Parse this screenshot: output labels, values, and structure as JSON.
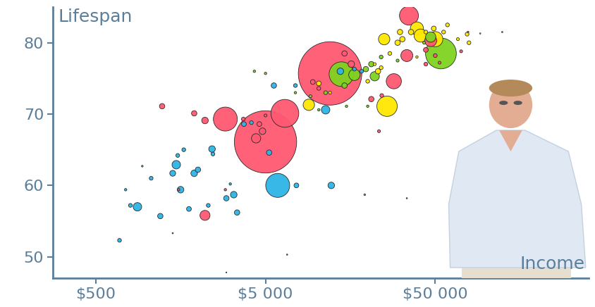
{
  "chart_data": {
    "type": "scatter",
    "ylabel": "Lifespan",
    "xlabel": "Income",
    "log": "x",
    "xlim": [
      280,
      400000
    ],
    "xticks": [
      {
        "value": 500,
        "label": "$500"
      },
      {
        "value": 5000,
        "label": "$5 000"
      },
      {
        "value": 50000,
        "label": "$50 000"
      }
    ],
    "ylim": [
      47,
      85
    ],
    "yticks": [
      50,
      60,
      70,
      80
    ],
    "grid": false,
    "series": [
      {
        "color": "#2db4e6",
        "x": [
          690,
          800,
          750,
          940,
          880,
          1060,
          1200,
          1420,
          1490,
          1520,
          1580,
          1650,
          1770,
          1900,
          2000,
          2420,
          2450,
          2300,
          2940,
          3250,
          3400,
          3100,
          3730,
          4130,
          5250,
          5900,
          7600,
          12200,
          6700,
          5600,
          7500,
          11300,
          13800,
          16700,
          18400,
          19200,
          34000,
          1420,
          2940
        ],
        "values": [
          52.3,
          57.2,
          59.4,
          62.7,
          57,
          61,
          55.7,
          61.7,
          62.9,
          64.2,
          59.4,
          65,
          56.7,
          61.7,
          62.2,
          65.1,
          64.4,
          57.2,
          58.2,
          58.7,
          56.2,
          60.2,
          68.6,
          68.8,
          64.6,
          60,
          60,
          60,
          50.3,
          74,
          74,
          70.6,
          76,
          76.3,
          76,
          58.7,
          58.2,
          53.3,
          47.8
        ],
        "sizes": [
          5,
          5,
          2,
          1,
          25,
          5,
          10,
          12,
          25,
          5,
          15,
          5,
          8,
          15,
          10,
          15,
          5,
          5,
          10,
          15,
          10,
          2,
          8,
          5,
          10,
          200,
          8,
          15,
          0.5,
          10,
          5,
          25,
          15,
          5,
          5,
          1,
          0.5,
          0.5,
          0.3
        ]
      },
      {
        "color": "#ff5872",
        "x": [
          1230,
          1900,
          2200,
          2900,
          6500,
          5000,
          4400,
          4800,
          4600,
          2200,
          2900,
          12000,
          16000,
          14600,
          21000,
          24200,
          23300,
          28500,
          44000,
          34000,
          35000,
          44000,
          47000,
          50000,
          53000,
          71000,
          78000,
          124000,
          3700,
          5000,
          1540,
          9500,
          10300
        ],
        "values": [
          71.1,
          70.1,
          69.1,
          69.3,
          70.1,
          66.1,
          66.6,
          67.6,
          68.6,
          55.8,
          59.4,
          75.7,
          77,
          78.5,
          72.1,
          72.6,
          67.6,
          74.6,
          77,
          78.2,
          83.8,
          79,
          80.3,
          78.2,
          77.2,
          78.8,
          81.5,
          81.5,
          69.3,
          69.8,
          59.4,
          74.5,
          73.6
        ],
        "sizes": [
          10,
          10,
          15,
          200,
          270,
          1350,
          30,
          15,
          8,
          35,
          2,
          1400,
          15,
          10,
          10,
          5,
          3,
          80,
          5,
          50,
          125,
          8,
          50,
          5,
          3,
          3,
          1,
          0.5,
          5,
          3,
          2,
          8,
          5
        ]
      },
      {
        "color": "#7ed321",
        "x": [
          4300,
          5000,
          7500,
          9200,
          11300,
          14600,
          14000,
          16700,
          21000,
          24000,
          30000,
          43000,
          54000,
          47000,
          10300,
          15000,
          20000,
          19500,
          22000
        ],
        "values": [
          76,
          75.7,
          73,
          72.5,
          73,
          74,
          75.6,
          75.5,
          77,
          78,
          77.5,
          80,
          78.5,
          80.8,
          70.6,
          71.1,
          71.1,
          76.3,
          75.3
        ],
        "sizes": [
          2,
          2,
          2,
          3,
          5,
          10,
          210,
          45,
          10,
          5,
          3,
          3,
          330,
          37,
          2,
          2,
          2,
          10,
          30
        ]
      },
      {
        "color": "#ffe700",
        "x": [
          22000,
          24000,
          26000,
          20000,
          23000,
          9000,
          10300,
          12000,
          27000,
          30000,
          32000,
          36000,
          39000,
          41000,
          44000,
          49000,
          50000,
          56000,
          59000,
          68000,
          77000,
          92000,
          79000,
          25000,
          31000,
          39000
        ],
        "values": [
          77,
          76.5,
          71.1,
          74.6,
          76,
          71.3,
          74.3,
          73,
          78.5,
          80,
          80.5,
          81.5,
          82,
          81,
          81.5,
          82,
          80.5,
          81.5,
          82.5,
          80.5,
          81.2,
          81.3,
          80,
          80.5,
          81.5,
          78
        ],
        "sizes": [
          3,
          5,
          145,
          5,
          10,
          45,
          8,
          3,
          5,
          10,
          10,
          10,
          60,
          60,
          5,
          8,
          80,
          5,
          5,
          3,
          5,
          0.5,
          5,
          45,
          10,
          2
        ]
      }
    ]
  }
}
